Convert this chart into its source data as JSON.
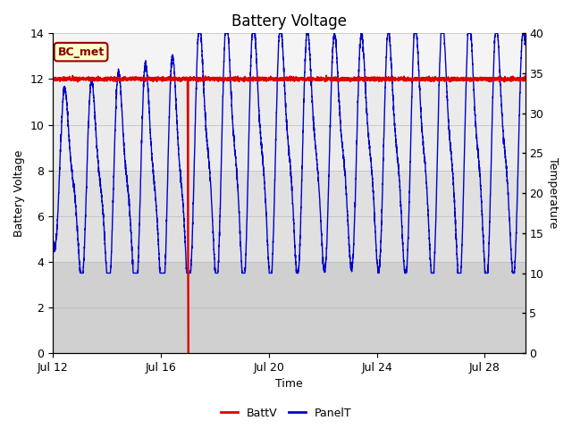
{
  "title": "Battery Voltage",
  "xlabel": "Time",
  "ylabel_left": "Battery Voltage",
  "ylabel_right": "Temperature",
  "ylim_left": [
    0,
    14
  ],
  "ylim_right": [
    0,
    40
  ],
  "xlim_start": 0,
  "xlim_end": 17.5,
  "xtick_labels": [
    "Jul 12",
    "Jul 16",
    "Jul 20",
    "Jul 24",
    "Jul 28"
  ],
  "xtick_positions": [
    0,
    4,
    8,
    12,
    16
  ],
  "fig_bg_color": "#ffffff",
  "plot_bg_color": "#ffffff",
  "band1_color": "#d8d8d8",
  "band2_color": "#e8e8e8",
  "band3_color": "#f0f0f0",
  "batt_color": "#dd0000",
  "panel_color": "#0000cc",
  "legend_batt": "BattV",
  "legend_panel": "PanelT",
  "annotation_text": "BC_met",
  "annotation_bg": "#ffffcc",
  "annotation_border": "#990000",
  "title_fontsize": 12,
  "axis_label_fontsize": 9,
  "tick_fontsize": 9,
  "legend_fontsize": 9
}
